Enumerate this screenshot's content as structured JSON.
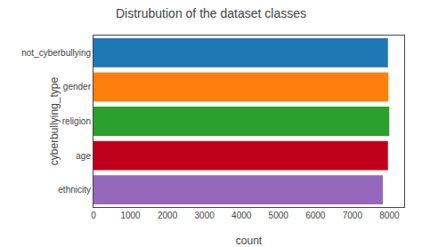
{
  "chart_data": {
    "type": "bar",
    "orientation": "horizontal",
    "title": "Distrubution of the dataset classes",
    "categories": [
      "not_cyberbullying",
      "gender",
      "religion",
      "age",
      "ethnicity"
    ],
    "values": [
      7961,
      7973,
      7997,
      7961,
      7823
    ],
    "colors": [
      "#1f77b4",
      "#ff7f0e",
      "#2ca02c",
      "#c0001a",
      "#9467bd"
    ],
    "xlabel": "count",
    "ylabel": "cyberbullying_type",
    "xlim": [
      0,
      8400
    ],
    "xticks": [
      0,
      1000,
      2000,
      3000,
      4000,
      5000,
      6000,
      7000,
      8000
    ],
    "grid": false
  }
}
